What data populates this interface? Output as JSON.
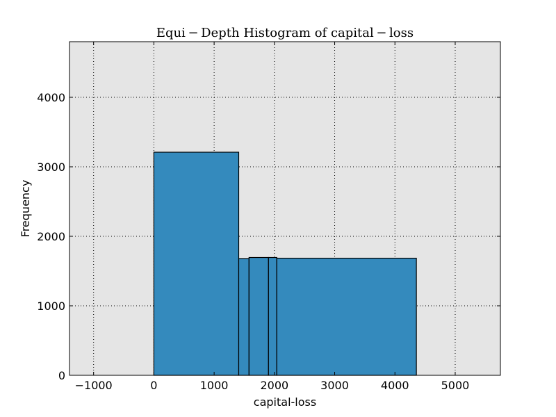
{
  "chart_data": {
    "type": "bar",
    "title": "Equi − Depth Histogram of capital − loss",
    "xlabel": "capital-loss",
    "ylabel": "Frequency",
    "xlim": [
      -1400,
      5750
    ],
    "ylim": [
      0,
      4800
    ],
    "xticks": [
      -1000,
      0,
      1000,
      2000,
      3000,
      4000,
      5000
    ],
    "xtick_labels": [
      "−1000",
      "0",
      "1000",
      "2000",
      "3000",
      "4000",
      "5000"
    ],
    "yticks": [
      0,
      1000,
      2000,
      3000,
      4000
    ],
    "ytick_labels": [
      "0",
      "1000",
      "2000",
      "3000",
      "4000"
    ],
    "grid": true,
    "bins": [
      {
        "start": 0,
        "end": 1408,
        "value": 3210
      },
      {
        "start": 1408,
        "end": 1579,
        "value": 1680
      },
      {
        "start": 1579,
        "end": 1902,
        "value": 1695
      },
      {
        "start": 1902,
        "end": 2040,
        "value": 1695
      },
      {
        "start": 2040,
        "end": 4356,
        "value": 1685
      }
    ],
    "colors": {
      "bar_fill": "#348abd",
      "bar_edge": "#000000",
      "plot_background": "#e5e5e5",
      "grid": "#000000"
    }
  }
}
